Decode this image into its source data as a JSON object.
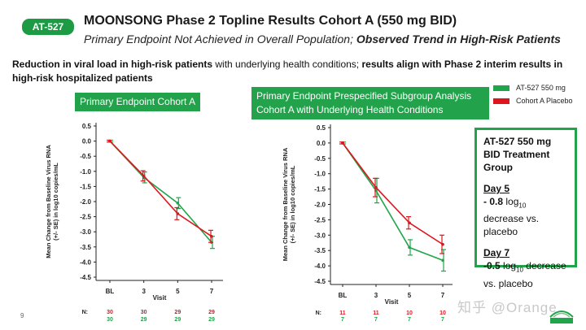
{
  "header": {
    "badge": "AT-527",
    "title": "MOONSONG Phase 2 Topline Results Cohort A (550 mg BID)",
    "subtitle_plain": "Primary Endpoint Not Achieved in Overall Population; ",
    "subtitle_bold": "Observed Trend in High-Risk Patients"
  },
  "intro": {
    "part1_bold": "Reduction in viral load in high-risk patients",
    "part2": " with underlying health conditions; ",
    "part3_bold": "results align with Phase 2 interim results in high-risk hospitalized patients"
  },
  "legend": {
    "items": [
      {
        "label": "AT-527 550 mg",
        "color": "#1fa64a"
      },
      {
        "label": "Cohort A Placebo",
        "color": "#e0141c"
      }
    ]
  },
  "summary": {
    "heading": "AT-527 550 mg BID Treatment Group",
    "day5_title": "Day 5",
    "day5_value": "- 0.8",
    "day5_unit": "log",
    "day5_sub": "10",
    "day5_text": " decrease vs. placebo",
    "day7_title": "Day 7",
    "day7_value": "-0.5",
    "day7_unit": "log",
    "day7_sub": "10",
    "day7_text": " decrease vs. placebo"
  },
  "colors": {
    "accent": "#1fa64a",
    "treatment": "#1fa64a",
    "placebo": "#e0141c"
  },
  "page_number": "9",
  "watermark": "知乎 @Orange",
  "chart_data": [
    {
      "type": "line",
      "panel_label": "Primary Endpoint Cohort A",
      "ylabel": "Mean Change from Baseline Virus RNA (+/- SE) in log10 copies/mL",
      "xlabel": "Visit",
      "categories": [
        "BL",
        "3",
        "5",
        "7"
      ],
      "ylim": [
        -4.5,
        0.5
      ],
      "yticks": [
        "0.5",
        "0.0",
        "-0.5",
        "-1.0",
        "-1.5",
        "-2.0",
        "-2.5",
        "-3.0",
        "-3.5",
        "-4.0",
        "-4.5"
      ],
      "series": [
        {
          "name": "AT-527 550 mg",
          "values": [
            0.0,
            -1.2,
            -2.05,
            -3.35
          ],
          "se": [
            0.03,
            0.18,
            0.18,
            0.2
          ]
        },
        {
          "name": "Cohort A Placebo",
          "values": [
            0.0,
            -1.15,
            -2.4,
            -3.15
          ],
          "se": [
            0.03,
            0.17,
            0.2,
            0.2
          ]
        }
      ],
      "n_label": "N:",
      "n_placebo": [
        "30",
        "30",
        "29",
        "29"
      ],
      "n_treatment": [
        "30",
        "29",
        "29",
        "29"
      ]
    },
    {
      "type": "line",
      "panel_label": "Primary Endpoint Prespecified Subgroup Analysis Cohort A with Underlying Health Conditions",
      "ylabel": "Mean Change from Baseline Virus RNA (+/- SE) in log10 copies/mL",
      "xlabel": "Visit",
      "categories": [
        "BL",
        "3",
        "5",
        "7"
      ],
      "ylim": [
        -4.5,
        0.5
      ],
      "yticks": [
        "0.5",
        "0.0",
        "-0.5",
        "-1.0",
        "-1.5",
        "-2.0",
        "-2.5",
        "-3.0",
        "-3.5",
        "-4.0",
        "-4.5"
      ],
      "series": [
        {
          "name": "AT-527 550 mg",
          "values": [
            0.0,
            -1.55,
            -3.4,
            -3.82
          ],
          "se": [
            0.03,
            0.4,
            0.25,
            0.35
          ]
        },
        {
          "name": "Cohort A Placebo",
          "values": [
            0.0,
            -1.45,
            -2.6,
            -3.3
          ],
          "se": [
            0.03,
            0.3,
            0.2,
            0.3
          ]
        }
      ],
      "n_label": "N:",
      "n_placebo": [
        "11",
        "11",
        "10",
        "10"
      ],
      "n_treatment": [
        "7",
        "7",
        "7",
        "7"
      ]
    }
  ]
}
